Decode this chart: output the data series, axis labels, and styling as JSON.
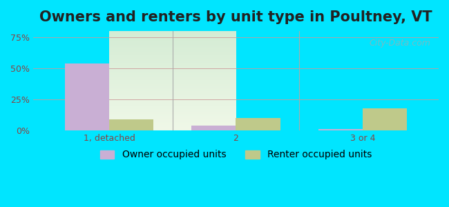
{
  "title": "Owners and renters by unit type in Poultney, VT",
  "categories": [
    "1, detached",
    "2",
    "3 or 4"
  ],
  "owner_values": [
    54,
    4,
    1
  ],
  "renter_values": [
    9,
    10,
    18
  ],
  "owner_color": "#c9afd4",
  "renter_color": "#bfc98a",
  "yticks": [
    0,
    25,
    50,
    75
  ],
  "ytick_labels": [
    "0%",
    "25%",
    "50%",
    "75%"
  ],
  "ylim": [
    0,
    80
  ],
  "bar_width": 0.35,
  "background_top": "#d4ecd4",
  "background_bottom": "#f0f8e8",
  "cyan_bg": "#00e5ff",
  "watermark": "City-Data.com",
  "title_fontsize": 15,
  "legend_fontsize": 10,
  "tick_fontsize": 9,
  "tick_color": "#884444",
  "grid_color": "#cc9999",
  "separator_color": "#aaaaaa"
}
